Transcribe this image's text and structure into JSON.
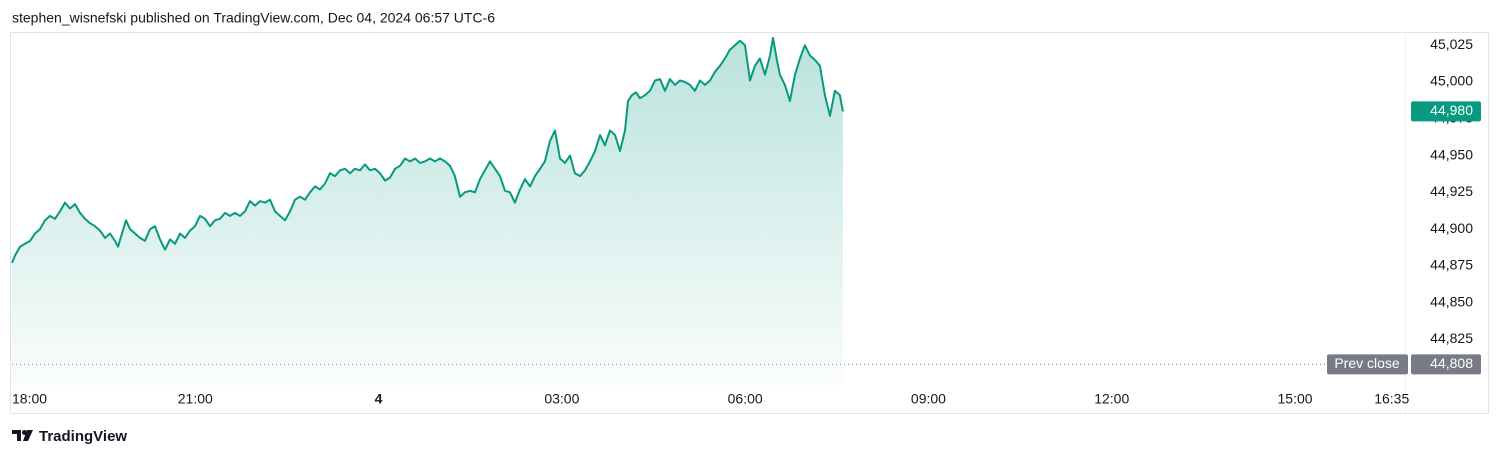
{
  "chart_data": {
    "type": "area",
    "title": "stephen_wisnefski published on TradingView.com, Dec 04, 2024 06:57 UTC-6",
    "color": "#089981",
    "xlim": [
      18,
      40.8
    ],
    "xticks": [
      {
        "value": 18,
        "label": "18:00"
      },
      {
        "value": 21,
        "label": "21:00"
      },
      {
        "value": 24,
        "label": "4"
      },
      {
        "value": 27,
        "label": "03:00"
      },
      {
        "value": 30,
        "label": "06:00"
      },
      {
        "value": 33,
        "label": "09:00"
      },
      {
        "value": 36,
        "label": "12:00"
      },
      {
        "value": 39,
        "label": "15:00"
      },
      {
        "value": 40.583,
        "label": "16:35"
      }
    ],
    "ylim": [
      44794,
      45034
    ],
    "yticks": [
      {
        "value": 44825,
        "label": "44,825"
      },
      {
        "value": 44850,
        "label": "44,850"
      },
      {
        "value": 44875,
        "label": "44,875"
      },
      {
        "value": 44900,
        "label": "44,900"
      },
      {
        "value": 44925,
        "label": "44,925"
      },
      {
        "value": 44950,
        "label": "44,950"
      },
      {
        "value": 44975,
        "label": "44,975"
      },
      {
        "value": 45000,
        "label": "45,000"
      },
      {
        "value": 45025,
        "label": "45,025"
      }
    ],
    "current_price": {
      "value": 44980,
      "label": "44,980"
    },
    "prev_close": {
      "name": "Prev close",
      "value": 44808,
      "label": "44,808"
    },
    "x": [
      18.0,
      18.049,
      18.131,
      18.213,
      18.295,
      18.376,
      18.458,
      18.54,
      18.622,
      18.704,
      18.786,
      18.868,
      18.949,
      19.031,
      19.113,
      19.195,
      19.277,
      19.358,
      19.44,
      19.522,
      19.604,
      19.686,
      19.735,
      19.8,
      19.866,
      19.931,
      20.013,
      20.095,
      20.177,
      20.259,
      20.34,
      20.422,
      20.504,
      20.586,
      20.668,
      20.75,
      20.831,
      20.913,
      20.995,
      21.077,
      21.159,
      21.241,
      21.322,
      21.404,
      21.486,
      21.568,
      21.65,
      21.732,
      21.813,
      21.895,
      21.977,
      22.059,
      22.141,
      22.223,
      22.304,
      22.386,
      22.468,
      22.55,
      22.632,
      22.714,
      22.795,
      22.877,
      22.959,
      23.041,
      23.123,
      23.205,
      23.286,
      23.368,
      23.45,
      23.532,
      23.614,
      23.696,
      23.777,
      23.859,
      23.941,
      24.023,
      24.105,
      24.187,
      24.268,
      24.35,
      24.432,
      24.514,
      24.596,
      24.678,
      24.759,
      24.841,
      24.923,
      25.005,
      25.087,
      25.169,
      25.25,
      25.332,
      25.414,
      25.496,
      25.578,
      25.66,
      25.741,
      25.823,
      25.905,
      25.987,
      26.069,
      26.151,
      26.232,
      26.314,
      26.396,
      26.478,
      26.56,
      26.642,
      26.723,
      26.805,
      26.887,
      26.969,
      27.051,
      27.133,
      27.214,
      27.296,
      27.378,
      27.46,
      27.542,
      27.624,
      27.705,
      27.787,
      27.869,
      27.951,
      28.033,
      28.082,
      28.147,
      28.213,
      28.278,
      28.36,
      28.442,
      28.524,
      28.606,
      28.688,
      28.769,
      28.851,
      28.933,
      29.015,
      29.097,
      29.178,
      29.26,
      29.342,
      29.424,
      29.506,
      29.588,
      29.669,
      29.751,
      29.833,
      29.915,
      29.997,
      30.079,
      30.16,
      30.242,
      30.324,
      30.406,
      30.455,
      30.52,
      30.569,
      30.651,
      30.733,
      30.815,
      30.897,
      30.978,
      31.06,
      31.142,
      31.224,
      31.306,
      31.388,
      31.469,
      31.551,
      31.6
    ],
    "values": [
      44877,
      44882,
      44888,
      44890,
      44892,
      44897,
      44900,
      44906,
      44909,
      44907,
      44912,
      44918,
      44914,
      44917,
      44911,
      44907,
      44904,
      44902,
      44899,
      44894,
      44897,
      44892,
      44888,
      44897,
      44906,
      44900,
      44897,
      44894,
      44892,
      44900,
      44902,
      44893,
      44886,
      44893,
      44890,
      44897,
      44894,
      44899,
      44902,
      44909,
      44907,
      44902,
      44906,
      44907,
      44911,
      44909,
      44911,
      44909,
      44912,
      44919,
      44916,
      44919,
      44918,
      44920,
      44912,
      44909,
      44906,
      44912,
      44920,
      44922,
      44920,
      44925,
      44929,
      44927,
      44931,
      44938,
      44936,
      44940,
      44941,
      44938,
      44941,
      44940,
      44944,
      44940,
      44941,
      44938,
      44933,
      44935,
      44941,
      44943,
      44948,
      44946,
      44948,
      44945,
      44946,
      44948,
      44946,
      44948,
      44946,
      44943,
      44936,
      44922,
      44925,
      44926,
      44925,
      44934,
      44940,
      44946,
      44941,
      44936,
      44926,
      44925,
      44918,
      44927,
      44934,
      44929,
      44936,
      44941,
      44946,
      44960,
      44967,
      44948,
      44945,
      44950,
      44938,
      44936,
      44940,
      44946,
      44953,
      44964,
      44957,
      44967,
      44964,
      44953,
      44967,
      44987,
      44991,
      44993,
      44989,
      44991,
      44994,
      45001,
      45002,
      44994,
      45002,
      44998,
      45001,
      45000,
      44998,
      44994,
      45001,
      44998,
      45001,
      45007,
      45011,
      45016,
      45022,
      45025,
      45028,
      45025,
      45001,
      45011,
      45016,
      45005,
      45018,
      45030,
      45015,
      45005,
      44998,
      44987,
      45005,
      45016,
      45025,
      45018,
      45015,
      45011,
      44991,
      44977,
      44994,
      44991,
      44980
    ]
  },
  "footer": {
    "brand": "TradingView"
  }
}
